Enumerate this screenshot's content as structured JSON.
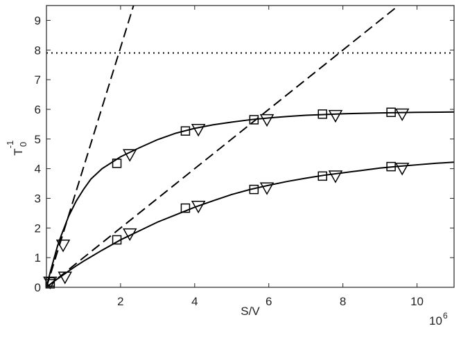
{
  "chart_data": {
    "type": "line",
    "title": "",
    "xlabel": "S/V",
    "ylabel_main": "T",
    "ylabel_sup": "-1",
    "ylabel_sub": "0",
    "x_multiplier": "10",
    "x_multiplier_exp": "6",
    "xlim": [
      0,
      11
    ],
    "ylim": [
      0,
      9.5
    ],
    "xticks": [
      2,
      4,
      6,
      8,
      10
    ],
    "yticks": [
      0,
      1,
      2,
      3,
      4,
      5,
      6,
      7,
      8,
      9
    ],
    "grid": false,
    "legend": "none",
    "series": [
      {
        "style": "solid",
        "x": [
          0.0,
          0.1,
          0.2,
          0.3,
          0.4,
          0.6,
          0.8,
          1.0,
          1.2,
          1.5,
          2.0,
          2.5,
          3.0,
          3.5,
          4.0,
          4.5,
          5.0,
          5.5,
          6.0,
          6.5,
          7.0,
          8.0,
          9.0,
          10.0,
          11.0
        ],
        "y": [
          0.0,
          0.5,
          0.95,
          1.4,
          1.75,
          2.4,
          2.9,
          3.3,
          3.65,
          4.0,
          4.4,
          4.7,
          4.98,
          5.2,
          5.36,
          5.48,
          5.57,
          5.65,
          5.71,
          5.76,
          5.8,
          5.85,
          5.88,
          5.9,
          5.91
        ]
      },
      {
        "style": "solid",
        "x": [
          0.0,
          0.2,
          0.4,
          0.6,
          0.8,
          1.0,
          1.5,
          2.0,
          2.5,
          3.0,
          3.5,
          4.0,
          4.5,
          5.0,
          5.5,
          6.0,
          6.5,
          7.0,
          7.5,
          8.0,
          8.5,
          9.0,
          9.5,
          10.0,
          10.5,
          11.0
        ],
        "y": [
          0.0,
          0.2,
          0.37,
          0.55,
          0.72,
          0.88,
          1.25,
          1.6,
          1.9,
          2.2,
          2.45,
          2.7,
          2.92,
          3.13,
          3.3,
          3.44,
          3.57,
          3.68,
          3.78,
          3.86,
          3.94,
          4.02,
          4.08,
          4.13,
          4.18,
          4.22
        ]
      },
      {
        "style": "dashed",
        "x": [
          0.0,
          2.35
        ],
        "y": [
          0.0,
          9.5
        ]
      },
      {
        "style": "dashed",
        "x": [
          0.0,
          9.5
        ],
        "y": [
          0.0,
          9.5
        ]
      },
      {
        "style": "dotted",
        "x": [
          0.0,
          11.0
        ],
        "y": [
          7.9,
          7.9
        ]
      }
    ],
    "markers": {
      "squares": [
        {
          "x": 0.1,
          "y": 0.18
        },
        {
          "x": 1.9,
          "y": 4.18
        },
        {
          "x": 3.75,
          "y": 5.27
        },
        {
          "x": 5.6,
          "y": 5.65
        },
        {
          "x": 7.45,
          "y": 5.84
        },
        {
          "x": 9.3,
          "y": 5.9
        },
        {
          "x": 0.1,
          "y": 0.12
        },
        {
          "x": 1.9,
          "y": 1.6
        },
        {
          "x": 3.75,
          "y": 2.67
        },
        {
          "x": 5.6,
          "y": 3.3
        },
        {
          "x": 7.45,
          "y": 3.75
        },
        {
          "x": 9.3,
          "y": 4.07
        }
      ],
      "triangles": [
        {
          "x": 0.1,
          "y": 0.2
        },
        {
          "x": 0.45,
          "y": 1.45
        },
        {
          "x": 2.25,
          "y": 4.5
        },
        {
          "x": 4.1,
          "y": 5.35
        },
        {
          "x": 5.95,
          "y": 5.68
        },
        {
          "x": 7.8,
          "y": 5.82
        },
        {
          "x": 9.6,
          "y": 5.87
        },
        {
          "x": 0.5,
          "y": 0.37
        },
        {
          "x": 2.25,
          "y": 1.83
        },
        {
          "x": 4.1,
          "y": 2.76
        },
        {
          "x": 5.95,
          "y": 3.38
        },
        {
          "x": 7.8,
          "y": 3.78
        },
        {
          "x": 9.6,
          "y": 4.04
        }
      ]
    }
  }
}
